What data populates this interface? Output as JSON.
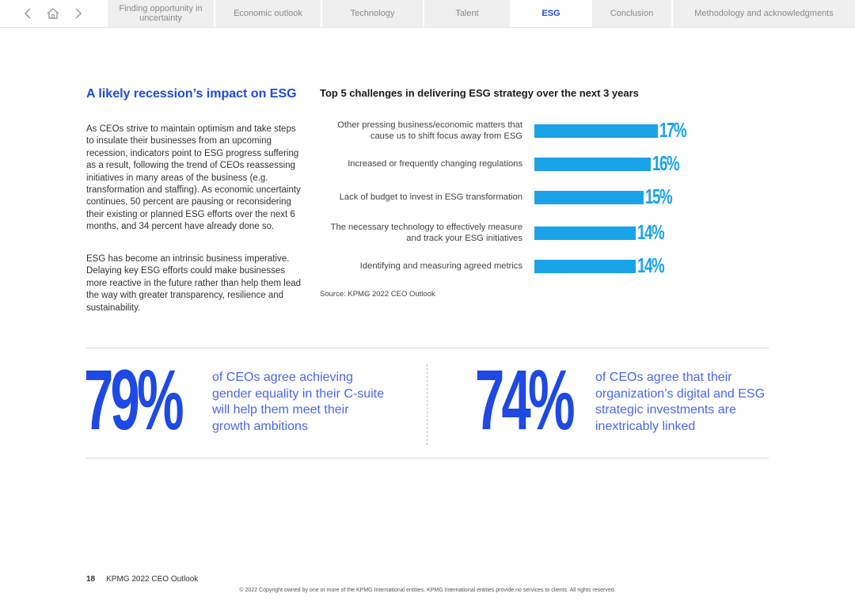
{
  "nav": {
    "back_icon": "chevron-left-icon",
    "home_icon": "home-icon",
    "forward_icon": "chevron-right-icon",
    "tabs": [
      {
        "label": "Finding opportunity in uncertainty"
      },
      {
        "label": "Economic outlook"
      },
      {
        "label": "Technology"
      },
      {
        "label": "Talent"
      },
      {
        "label": "ESG",
        "active": true
      },
      {
        "label": "Conclusion"
      },
      {
        "label": "Methodology and acknowledgments"
      }
    ]
  },
  "article": {
    "heading": "A likely recession’s impact on ESG",
    "paragraphs": [
      "As CEOs strive to maintain optimism and take steps to insulate their businesses from an upcoming recession, indicators point to ESG progress suffering as a result, following the trend of CEOs reassessing initiatives in many areas of the business (e.g. transformation and staffing). As economic uncertainty continues, 50 percent are pausing or reconsidering their existing or planned ESG efforts over the next 6 months, and 34 percent have already done so.",
      "ESG has become an intrinsic business imperative. Delaying key ESG efforts could make businesses more reactive in the future rather than help them lead the way with greater transparency, resilience and sustainability."
    ]
  },
  "chart_data": {
    "type": "bar",
    "orientation": "horizontal",
    "title": "Top 5 challenges in delivering ESG strategy over the next 3 years",
    "categories": [
      "Other pressing business/economic matters that cause us to shift focus away from ESG",
      "Increased or frequently changing regulations",
      "Lack of budget to invest in ESG transformation",
      "The necessary technology to effectively measure and track your ESG initiatives",
      "Identifying and measuring agreed metrics"
    ],
    "values": [
      17,
      16,
      15,
      14,
      14
    ],
    "value_labels": [
      "17%",
      "16%",
      "15%",
      "14%",
      "14%"
    ],
    "unit": "%",
    "xlim": [
      0,
      17
    ],
    "grid": false,
    "color": "#1aa3e8",
    "source": "Source: KPMG 2022 CEO Outlook"
  },
  "stats": [
    {
      "value": "79%",
      "text": "of CEOs agree achieving gender equality in their C-suite will help them meet their growth ambitions"
    },
    {
      "value": "74%",
      "text": "of CEOs agree that their organization’s digital and ESG strategic investments are inextricably linked"
    }
  ],
  "footer": {
    "page_number": "18",
    "publication": "KPMG 2022 CEO Outlook",
    "copyright": "© 2022 Copyright owned by one or more of the KPMG International entities. KPMG International entities provide no services to clients. All rights reserved."
  },
  "colors": {
    "accent_blue": "#1e49e2",
    "stat_text_blue": "#4a66ee",
    "bar_blue": "#1aa3e8",
    "tab_bg": "#efefef"
  }
}
